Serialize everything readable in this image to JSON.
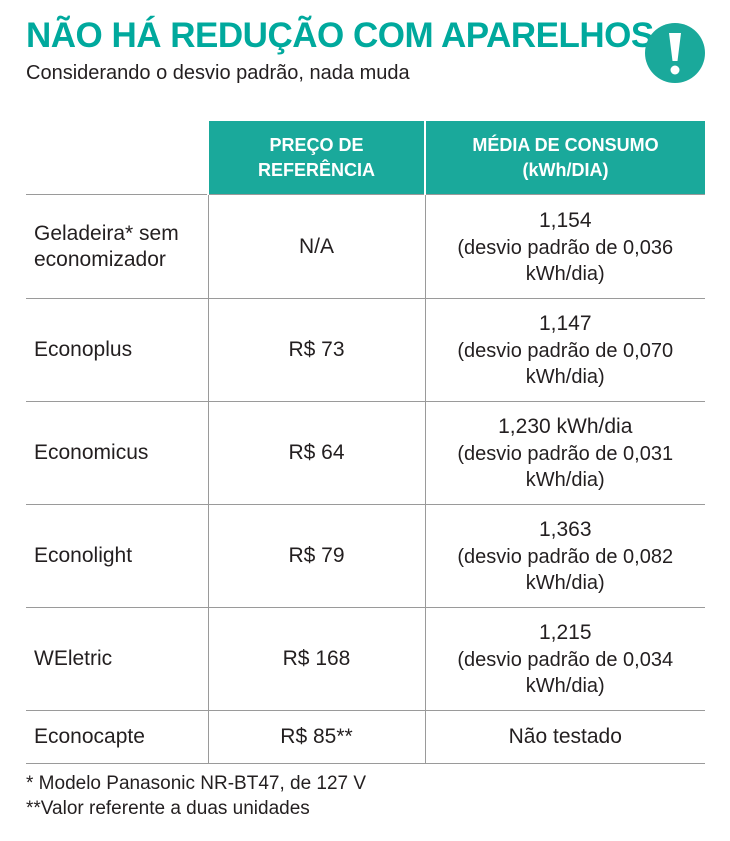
{
  "header": {
    "title": "NÃO HÁ REDUÇÃO COM APARELHOS",
    "subtitle": "Considerando o desvio padrão, nada muda",
    "icon": "exclamation-icon"
  },
  "colors": {
    "accent": "#1aa99b",
    "title": "#00a99d"
  },
  "table": {
    "columns": [
      "PREÇO DE REFERÊNCIA",
      "MÉDIA DE CONSUMO (kWh/DIA)"
    ],
    "rows": [
      {
        "name": "Geladeira* sem economizador",
        "price": "N/A",
        "value": "1,154",
        "deviation": "(desvio padrão de 0,036 kWh/dia)"
      },
      {
        "name": "Econoplus",
        "price": "R$ 73",
        "value": "1,147",
        "deviation": "(desvio padrão de 0,070 kWh/dia)"
      },
      {
        "name": "Economicus",
        "price": "R$ 64",
        "value": "1,230 kWh/dia",
        "deviation": "(desvio padrão de 0,031 kWh/dia)"
      },
      {
        "name": "Econolight",
        "price": "R$ 79",
        "value": "1,363",
        "deviation": "(desvio padrão de 0,082 kWh/dia)"
      },
      {
        "name": "WEletric",
        "price": "R$ 168",
        "value": "1,215",
        "deviation": "(desvio padrão de 0,034 kWh/dia)"
      },
      {
        "name": "Econocapte",
        "price": "R$ 85**",
        "value": "Não testado",
        "deviation": ""
      }
    ]
  },
  "notes": [
    "* Modelo Panasonic NR-BT47, de 127 V",
    "**Valor referente a duas unidades"
  ]
}
